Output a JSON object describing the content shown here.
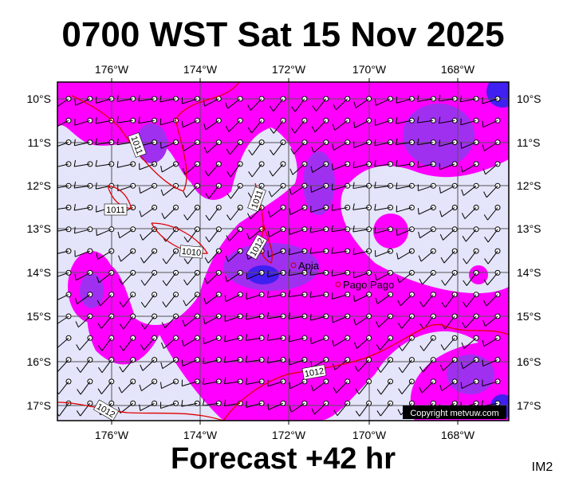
{
  "header": {
    "title": "0700 WST Sat 15 Nov 2025"
  },
  "map": {
    "lon_labels": [
      "176°W",
      "174°W",
      "172°W",
      "170°W",
      "168°W"
    ],
    "lat_labels": [
      "10°S",
      "11°S",
      "12°S",
      "13°S",
      "14°S",
      "15°S",
      "16°S",
      "17°S"
    ],
    "places": [
      "Apia",
      "Pago Pago"
    ],
    "isobar_labels": [
      "1011",
      "1011",
      "1011",
      "1010",
      "1012",
      "1012",
      "1012"
    ],
    "credit": "Copyright metvuw.com"
  },
  "footer": {
    "forecast": "Forecast +42 hr",
    "image_id": "IM2"
  }
}
